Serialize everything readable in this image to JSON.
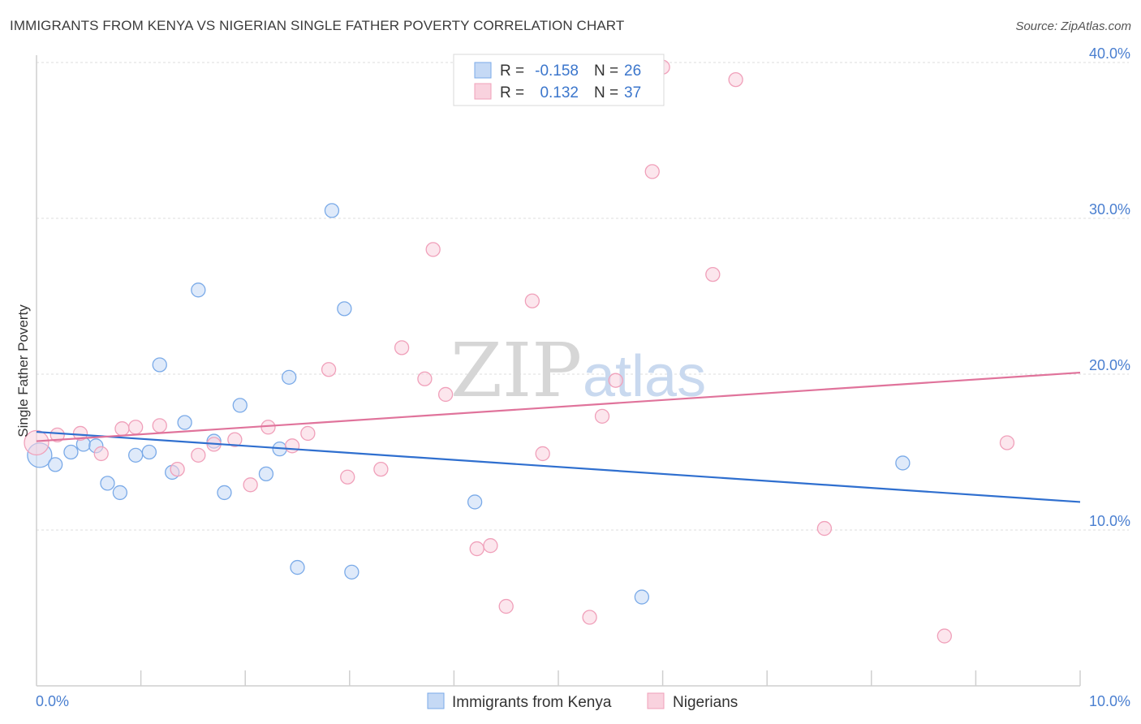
{
  "title": "IMMIGRANTS FROM KENYA VS NIGERIAN SINGLE FATHER POVERTY CORRELATION CHART",
  "source": "Source: ZipAtlas.com",
  "watermark": {
    "zip": "ZIP",
    "atlas": "atlas"
  },
  "legend": {
    "r_label": "R =",
    "n_label": "N =",
    "rows": [
      {
        "r": "-0.158",
        "n": "26"
      },
      {
        "r": "0.132",
        "n": "37"
      }
    ]
  },
  "chart_data": {
    "type": "scatter",
    "ylabel": "Single Father Poverty",
    "xlabel": "",
    "xlim": [
      0,
      10
    ],
    "ylim": [
      0,
      40
    ],
    "x_tick_labels": [
      {
        "label": "0.0%",
        "value": 0
      },
      {
        "label": "10.0%",
        "value": 10
      }
    ],
    "y_tick_labels": [
      {
        "label": "10.0%",
        "value": 10
      },
      {
        "label": "20.0%",
        "value": 20
      },
      {
        "label": "30.0%",
        "value": 30
      },
      {
        "label": "40.0%",
        "value": 40
      }
    ],
    "grid": "horizontal dashed",
    "legend_position": "top-center",
    "series": [
      {
        "name": "Immigrants from Kenya",
        "color": "#7aaae8",
        "fill": "#c5d9f5",
        "line_color": "#2f6fcf",
        "trend": [
          [
            0,
            16.3
          ],
          [
            10,
            11.8
          ]
        ],
        "points": [
          [
            0.03,
            14.8
          ],
          [
            0.18,
            14.2
          ],
          [
            0.33,
            15.0
          ],
          [
            0.45,
            15.5
          ],
          [
            0.57,
            15.4
          ],
          [
            0.68,
            13.0
          ],
          [
            0.8,
            12.4
          ],
          [
            0.95,
            14.8
          ],
          [
            1.08,
            15.0
          ],
          [
            1.18,
            20.6
          ],
          [
            1.3,
            13.7
          ],
          [
            1.42,
            16.9
          ],
          [
            1.55,
            25.4
          ],
          [
            1.7,
            15.7
          ],
          [
            1.8,
            12.4
          ],
          [
            1.95,
            18.0
          ],
          [
            2.2,
            13.6
          ],
          [
            2.33,
            15.2
          ],
          [
            2.42,
            19.8
          ],
          [
            2.5,
            7.6
          ],
          [
            2.83,
            30.5
          ],
          [
            2.95,
            24.2
          ],
          [
            3.02,
            7.3
          ],
          [
            4.2,
            11.8
          ],
          [
            5.8,
            5.7
          ],
          [
            8.3,
            14.3
          ]
        ]
      },
      {
        "name": "Nigerians",
        "color": "#f0a0ba",
        "fill": "#f9d2de",
        "line_color": "#e0739b",
        "trend": [
          [
            0,
            15.7
          ],
          [
            10,
            20.1
          ]
        ],
        "points": [
          [
            0.0,
            15.6
          ],
          [
            0.2,
            16.1
          ],
          [
            0.42,
            16.2
          ],
          [
            0.62,
            14.9
          ],
          [
            0.82,
            16.5
          ],
          [
            0.95,
            16.6
          ],
          [
            1.18,
            16.7
          ],
          [
            1.35,
            13.9
          ],
          [
            1.55,
            14.8
          ],
          [
            1.7,
            15.5
          ],
          [
            1.9,
            15.8
          ],
          [
            2.05,
            12.9
          ],
          [
            2.22,
            16.6
          ],
          [
            2.45,
            15.4
          ],
          [
            2.6,
            16.2
          ],
          [
            2.8,
            20.3
          ],
          [
            2.98,
            13.4
          ],
          [
            3.3,
            13.9
          ],
          [
            3.5,
            21.7
          ],
          [
            3.72,
            19.7
          ],
          [
            3.8,
            28.0
          ],
          [
            3.92,
            18.7
          ],
          [
            4.22,
            8.8
          ],
          [
            4.35,
            9.0
          ],
          [
            4.5,
            5.1
          ],
          [
            4.75,
            24.7
          ],
          [
            4.85,
            14.9
          ],
          [
            5.3,
            4.4
          ],
          [
            5.42,
            17.3
          ],
          [
            5.55,
            19.6
          ],
          [
            5.9,
            33.0
          ],
          [
            6.0,
            39.7
          ],
          [
            6.48,
            26.4
          ],
          [
            6.7,
            38.9
          ],
          [
            7.55,
            10.1
          ],
          [
            8.7,
            3.2
          ],
          [
            9.3,
            15.6
          ]
        ]
      }
    ]
  }
}
